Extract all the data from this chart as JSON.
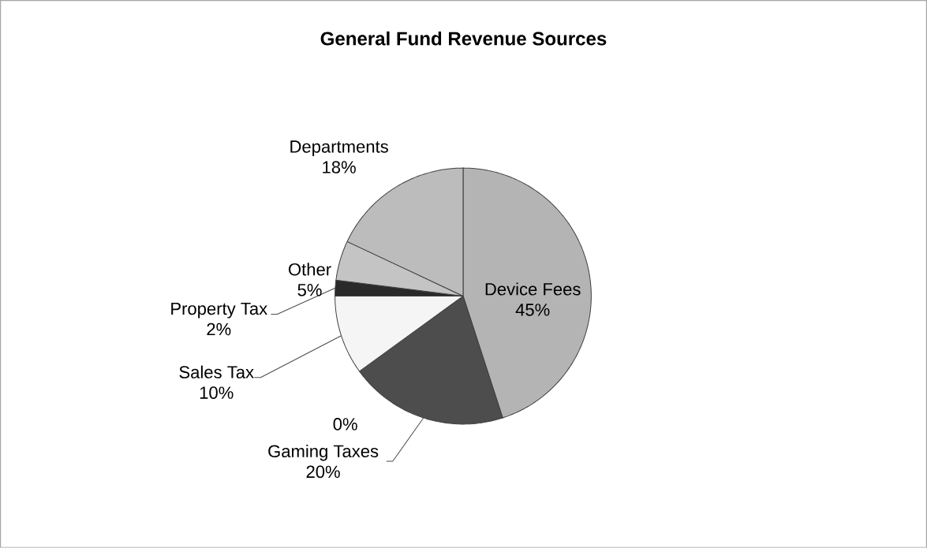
{
  "chart_data": {
    "type": "pie",
    "title": "General Fund Revenue Sources",
    "categories": [
      "Device Fees",
      "Gaming Taxes",
      null,
      "Sales Tax",
      "Property Tax",
      "Other",
      "Departments"
    ],
    "values": [
      45,
      20,
      0,
      10,
      2,
      5,
      18
    ],
    "colors": [
      "#b4b4b4",
      "#4d4d4d",
      "#808080",
      "#f5f5f5",
      "#2a2a2a",
      "#c4c4c4",
      "#bcbcbc"
    ],
    "value_labels": [
      "45%",
      "20%",
      "0%",
      "10%",
      "2%",
      "5%",
      "18%"
    ]
  }
}
